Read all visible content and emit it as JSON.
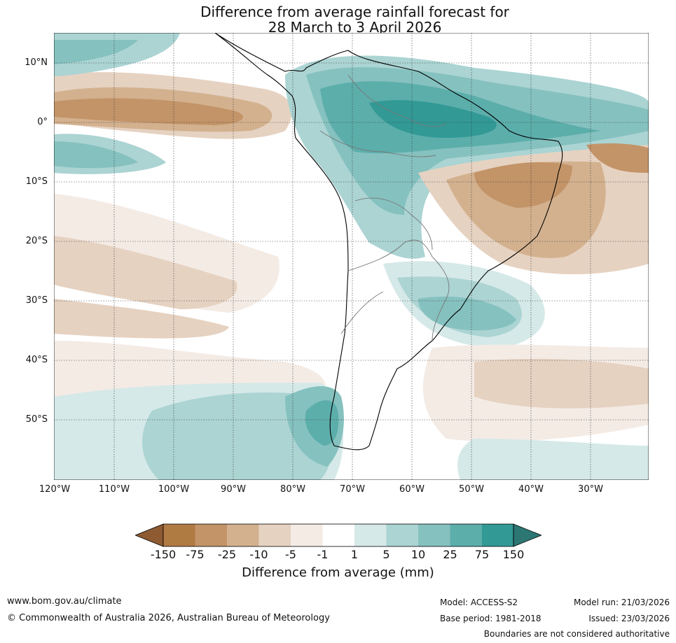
{
  "title": {
    "line1": "Difference from average rainfall forecast for",
    "line2": "28 March to 3 April 2026"
  },
  "map": {
    "lat_labels": [
      "10°N",
      "0°",
      "10°S",
      "20°S",
      "30°S",
      "40°S",
      "50°S"
    ],
    "lon_labels": [
      "120°W",
      "110°W",
      "100°W",
      "90°W",
      "80°W",
      "70°W",
      "60°W",
      "50°W",
      "40°W",
      "30°W"
    ]
  },
  "colorbar": {
    "label": "Difference from average (mm)",
    "ticks": [
      "-150",
      "-75",
      "-25",
      "-10",
      "-5",
      "-1",
      "1",
      "5",
      "10",
      "25",
      "75",
      "150"
    ],
    "colors": {
      "extend_low": "#8d5a32",
      "c1": "#b07a43",
      "c2": "#c39468",
      "c3": "#d3b18f",
      "c4": "#e6d2c1",
      "c5": "#f4ebe5",
      "c6": "#ffffff",
      "c7": "#d5e9e8",
      "c8": "#abd4d3",
      "c9": "#85c1bf",
      "c10": "#5caeab",
      "c11": "#329995",
      "extend_high": "#2c7673"
    }
  },
  "footer": {
    "website": "www.bom.gov.au/climate",
    "copyright": "© Commonwealth of Australia 2026, Australian Bureau of Meteorology",
    "model": "Model: ACCESS-S2",
    "base_period": "Base period: 1981-2018",
    "model_run": "Model run: 21/03/2026",
    "issued": "Issued: 23/03/2026",
    "disclaimer": "Boundaries are not considered authoritative"
  }
}
